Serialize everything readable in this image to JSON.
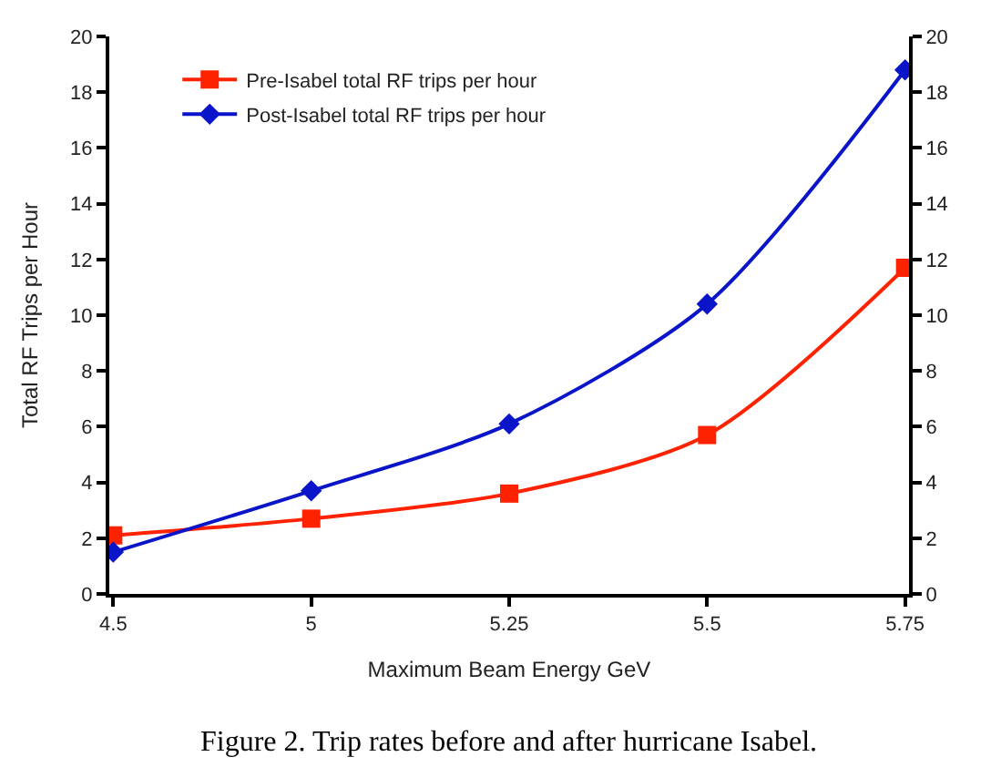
{
  "chart_data": {
    "type": "line",
    "xlabel": "Maximum Beam Energy GeV",
    "ylabel": "Total RF Trips per Hour",
    "categories": [
      "4.5",
      "5",
      "5.25",
      "5.5",
      "5.75"
    ],
    "series": [
      {
        "name": "Pre-Isabel total RF trips per hour",
        "color": "#ff2200",
        "marker": "square",
        "values": [
          2.1,
          2.7,
          3.6,
          5.7,
          11.7
        ]
      },
      {
        "name": "Post-Isabel total RF trips per hour",
        "color": "#0a14c8",
        "marker": "diamond",
        "values": [
          1.5,
          3.7,
          6.1,
          10.4,
          18.8
        ]
      }
    ],
    "ylim": [
      0,
      20
    ],
    "yticks": [
      0,
      2,
      4,
      6,
      8,
      10,
      12,
      14,
      16,
      18,
      20
    ],
    "y2lim": [
      0,
      20
    ],
    "y2ticks": [
      0,
      2,
      4,
      6,
      8,
      10,
      12,
      14,
      16,
      18,
      20
    ],
    "legend": "top left",
    "line_style": "solid",
    "annotations": [
      "Figure 2. Trip rates before and after hurricane Isabel."
    ]
  }
}
